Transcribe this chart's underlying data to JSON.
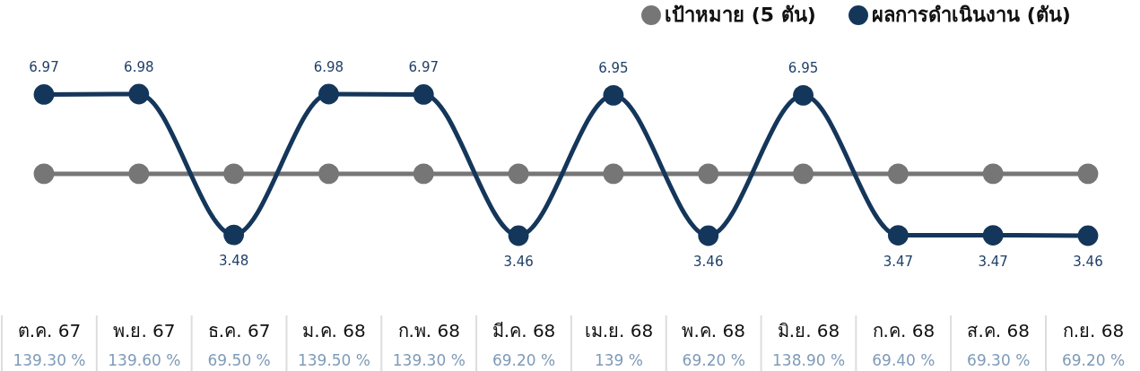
{
  "chart_data": {
    "type": "line",
    "categories": [
      "ต.ค. 67",
      "พ.ย. 67",
      "ธ.ค. 67",
      "ม.ค. 68",
      "ก.พ. 68",
      "มี.ค. 68",
      "เม.ย. 68",
      "พ.ค. 68",
      "มิ.ย. 68",
      "ก.ค. 68",
      "ส.ค. 68",
      "ก.ย. 68"
    ],
    "series": [
      {
        "name": "เป้าหมาย (5 ตัน)",
        "color": "#767676",
        "values": [
          5,
          5,
          5,
          5,
          5,
          5,
          5,
          5,
          5,
          5,
          5,
          5
        ]
      },
      {
        "name": "ผลการดำเนินงาน (ตัน)",
        "color": "#14365a",
        "values": [
          6.97,
          6.98,
          3.48,
          6.98,
          6.97,
          3.46,
          6.95,
          3.46,
          6.95,
          3.47,
          3.47,
          3.46
        ],
        "value_labels": [
          "6.97",
          "6.98",
          "3.48",
          "6.98",
          "6.97",
          "3.46",
          "6.95",
          "3.46",
          "6.95",
          "3.47",
          "3.47",
          "3.46"
        ]
      }
    ],
    "marker": "circle",
    "line_style": "solid",
    "legend": "top right",
    "tick_labels": "x",
    "annotations": [
      "139.30 %",
      "139.60 %",
      "69.50 %",
      "139.50 %",
      "139.30 %",
      "69.20 %",
      "139 %",
      "69.20 %",
      "138.90 %",
      "69.40 %",
      "69.30 %",
      "69.20 %"
    ]
  }
}
